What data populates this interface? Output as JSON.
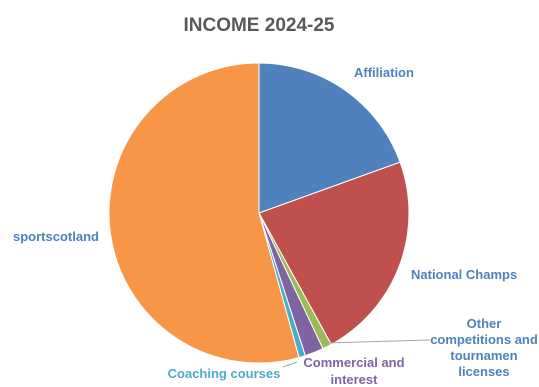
{
  "chart_data": {
    "type": "pie",
    "title": "INCOME 2024-25",
    "slices": [
      {
        "label": "Affiliation",
        "value": 19.5,
        "color": "#4F81BD"
      },
      {
        "label": "National Champs",
        "value": 22.5,
        "color": "#C0504D"
      },
      {
        "label": "Other competitions and tournamen licenses",
        "label_lines": [
          "Other",
          "competitions and",
          "tournamen",
          "licenses"
        ],
        "value": 1.0,
        "color": "#9BBB59"
      },
      {
        "label": "Commercial and interest",
        "label_lines": [
          "Commercial and",
          "interest"
        ],
        "value": 2.0,
        "color": "#8064A2"
      },
      {
        "label": "Coaching courses",
        "value": 0.7,
        "color": "#4BACC6"
      },
      {
        "label": "sportscotland",
        "value": 54.3,
        "color": "#F79646"
      }
    ],
    "legend": "none",
    "labels": "outside slices with leader lines"
  }
}
